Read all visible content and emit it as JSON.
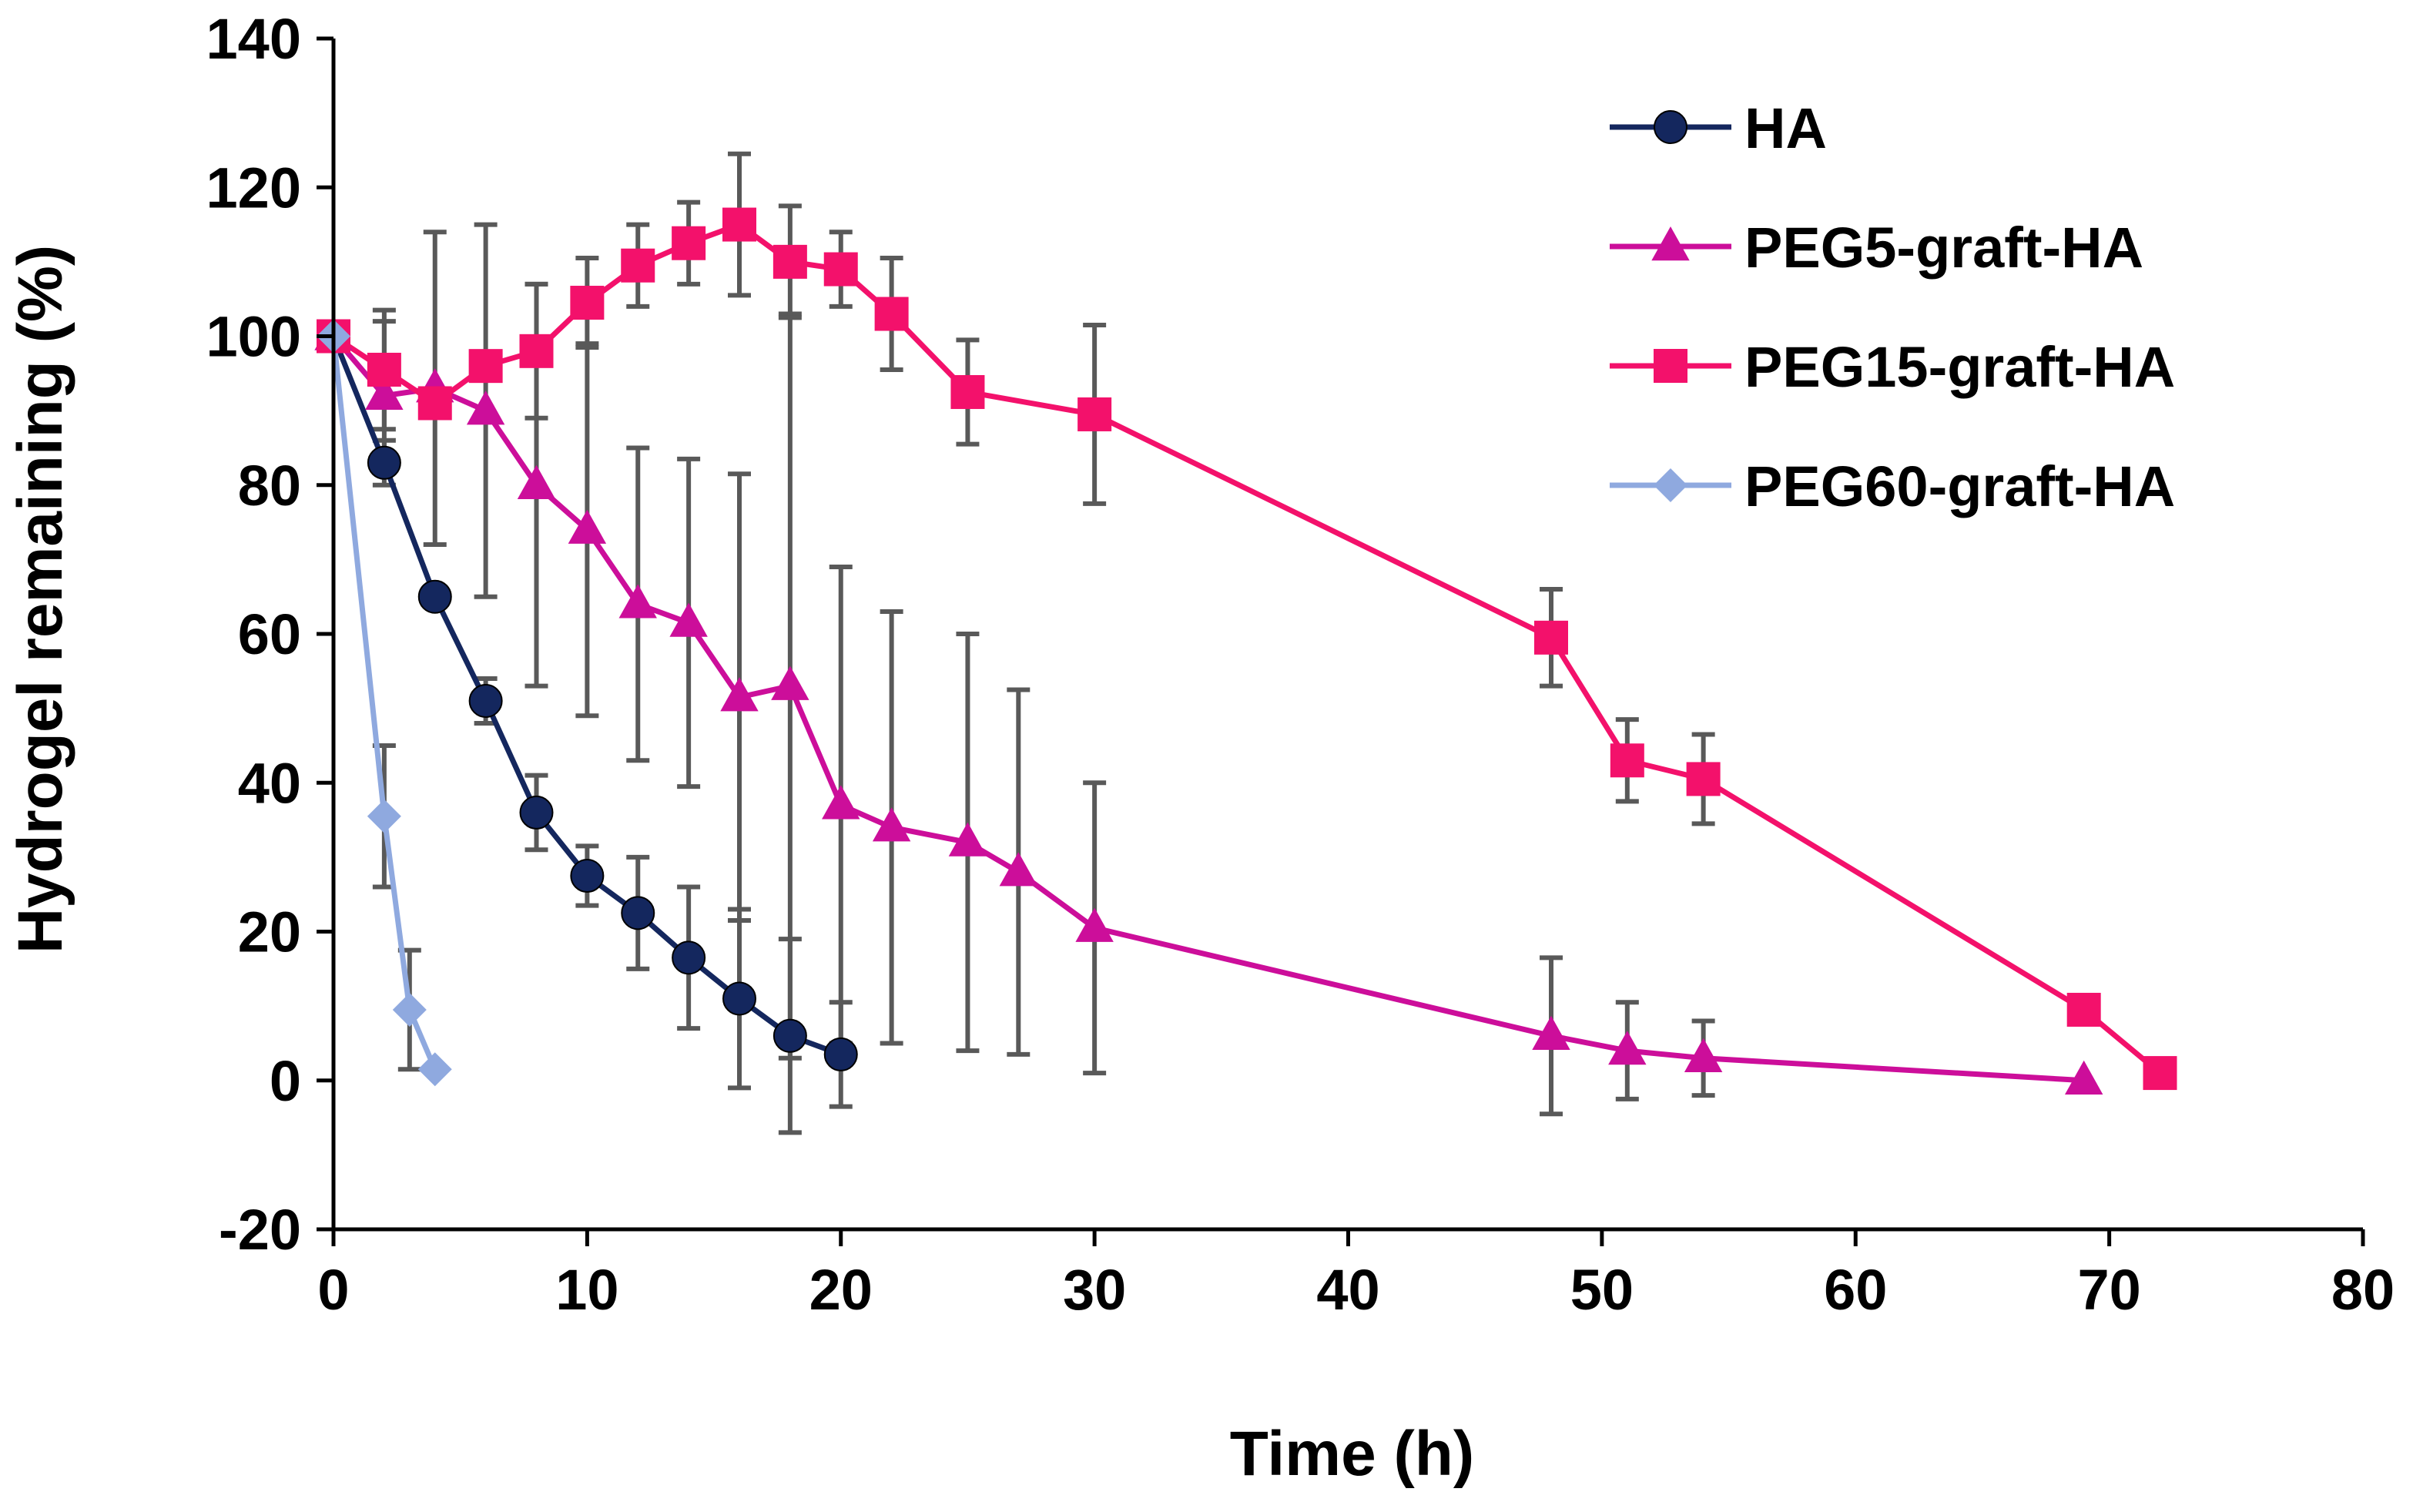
{
  "chart_data": {
    "type": "line",
    "title": "",
    "xlabel": "Time (h)",
    "ylabel": "Hydrogel remaining (%)",
    "xlim": [
      0,
      80
    ],
    "ylim": [
      -20,
      140
    ],
    "xticks": [
      0,
      10,
      20,
      30,
      40,
      50,
      60,
      70,
      80
    ],
    "yticks": [
      -20,
      0,
      20,
      40,
      60,
      80,
      100,
      120,
      140
    ],
    "xtick_labels": [
      "0",
      "10",
      "20",
      "30",
      "40",
      "50",
      "60",
      "70",
      "80"
    ],
    "ytick_labels": [
      "-20",
      "0",
      "20",
      "40",
      "60",
      "80",
      "100",
      "120",
      "140"
    ],
    "grid": false,
    "legend_position": "top-right",
    "series": [
      {
        "name": "HA",
        "color": "#14275e",
        "marker": "circle",
        "x": [
          0,
          2,
          4,
          6,
          8,
          10,
          12,
          14,
          16,
          18,
          20
        ],
        "y": [
          100,
          83,
          65,
          51,
          36,
          27.5,
          22.5,
          16.5,
          11,
          6,
          3.5
        ],
        "err": [
          0,
          3,
          0,
          3,
          5,
          4,
          7.5,
          9.5,
          12,
          13,
          7
        ]
      },
      {
        "name": "PEG5-graft-HA",
        "color": "#cc0e9a",
        "marker": "triangle",
        "x": [
          0,
          2,
          4,
          6,
          8,
          10,
          12,
          14,
          16,
          18,
          20,
          22,
          25,
          27,
          30,
          48,
          51,
          54,
          69
        ],
        "y": [
          100,
          92,
          93,
          90,
          80,
          74,
          64,
          61.5,
          51.5,
          53,
          37,
          34,
          32,
          28,
          20.5,
          6,
          4,
          3,
          0
        ],
        "err": [
          0,
          10,
          21,
          25,
          27,
          25,
          21,
          22,
          30,
          50,
          32,
          29,
          28,
          24.5,
          19.5,
          10.5,
          6.5,
          5,
          0
        ]
      },
      {
        "name": "PEG15-graft-HA",
        "color": "#f3116b",
        "marker": "square",
        "x": [
          0,
          2,
          4,
          6,
          8,
          10,
          12,
          14,
          16,
          18,
          20,
          22,
          25,
          30,
          48,
          51,
          54,
          69,
          72
        ],
        "y": [
          100,
          95.5,
          91,
          96,
          98,
          104.5,
          109.5,
          112.5,
          115,
          110,
          109,
          103,
          92.5,
          89.5,
          59.5,
          43,
          40.5,
          9.5,
          1
        ],
        "err": [
          0,
          8,
          0,
          0,
          9,
          6,
          5.5,
          5.5,
          9.5,
          7.5,
          5,
          7.5,
          7,
          12,
          6.5,
          5.5,
          6,
          0,
          0
        ]
      },
      {
        "name": "PEG60-graft-HA",
        "color": "#8fa9df",
        "marker": "diamond",
        "x": [
          0,
          2,
          3,
          4
        ],
        "y": [
          100,
          35.5,
          9.5,
          1.5
        ],
        "err": [
          0,
          9.5,
          8,
          0
        ]
      }
    ]
  }
}
